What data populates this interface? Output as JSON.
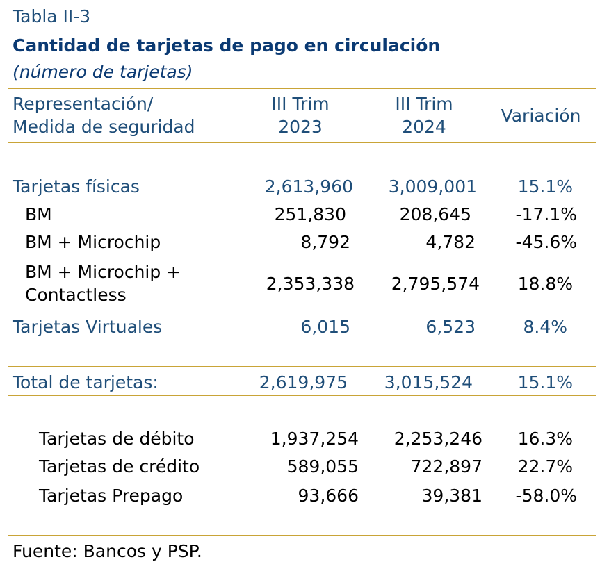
{
  "table_label": "Tabla II-3",
  "title": "Cantidad de tarjetas de pago en circulación",
  "subtitle": "(número de tarjetas)",
  "header": {
    "col0_line1": "Representación/",
    "col0_line2": "Medida de seguridad",
    "col1_line1": "III Trim",
    "col1_line2": "2023",
    "col2_line1": "III Trim",
    "col2_line2": "2024",
    "col3": "Variación"
  },
  "rows": [
    {
      "label": "Tarjetas físicas",
      "v2023": "2,613,960",
      "v2024": "3,009,001",
      "var": "15.1%"
    },
    {
      "label": "BM",
      "v2023": "251,830",
      "v2024": "208,645",
      "var": "-17.1%"
    },
    {
      "label": "BM + Microchip",
      "v2023": "8,792",
      "v2024": "4,782",
      "var": "-45.6%"
    },
    {
      "label_line1": "BM + Microchip +",
      "label_line2": "Contactless",
      "v2023": "2,353,338",
      "v2024": "2,795,574",
      "var": "18.8%"
    },
    {
      "label": "Tarjetas Virtuales",
      "v2023": "6,015",
      "v2024": "6,523",
      "var": "8.4%"
    }
  ],
  "total": {
    "label": "Total de tarjetas:",
    "v2023": "2,619,975",
    "v2024": "3,015,524",
    "var": "15.1%"
  },
  "types": [
    {
      "label": "Tarjetas de débito",
      "v2023": "1,937,254",
      "v2024": "2,253,246",
      "var": "16.3%"
    },
    {
      "label": "Tarjetas de crédito",
      "v2023": "589,055",
      "v2024": "722,897",
      "var": "22.7%"
    },
    {
      "label": "Tarjetas Prepago",
      "v2023": "93,666",
      "v2024": "39,381",
      "var": "-58.0%"
    }
  ],
  "source": "Fuente: Bancos y PSP.",
  "colors": {
    "text_blue": "#1f4e79",
    "title_navy": "#0b3a73",
    "rule_gold": "#c9a437"
  }
}
